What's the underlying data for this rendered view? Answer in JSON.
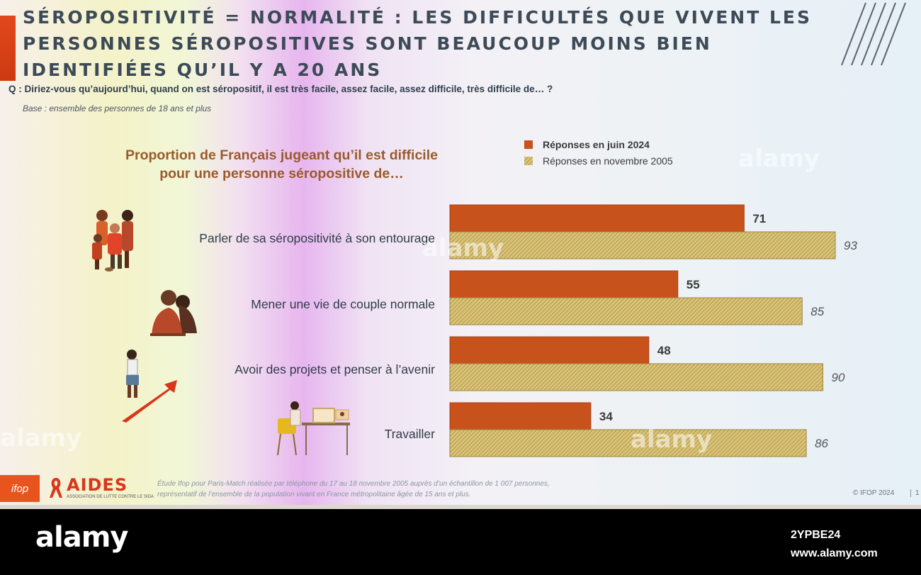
{
  "slide": {
    "title": "SÉROPOSITIVITÉ = NORMALITÉ : LES DIFFICULTÉS QUE VIVENT LES PERSONNES SÉROPOSITIVES SONT BEAUCOUP MOINS BIEN IDENTIFIÉES QU’IL Y A 20 ANS",
    "question": "Q : Diriez-vous qu’aujourd’hui, quand on est séropositif, il est très facile, assez facile, assez difficile, très difficile de… ?",
    "base": "Base : ensemble des personnes de 18 ans et plus",
    "chart_heading_line1": "Proportion de Français jugeant qu’il est difficile",
    "chart_heading_line2": "pour une personne séropositive de…",
    "footer_line1": "Étude Ifop pour Paris-Match réalisée par téléphone du 17 au 18 novembre 2005 auprès d’un échantillon de 1 007 personnes,",
    "footer_line2": "représentatif de l’ensemble de la population vivant en France métropolitaine âgée de 15 ans et plus.",
    "copyright": "© IFOP 2024",
    "page_number": "1",
    "ifop_logo": "ifop",
    "aides_logo": "AIDES",
    "aides_tagline": "ASSOCIATION DE LUTTE CONTRE LE SIDA"
  },
  "watermarks": {
    "text": "alamy",
    "small": "a"
  },
  "bottom_bar": {
    "brand": "alamy",
    "image_id": "2YPBE24",
    "site": "www.alamy.com"
  },
  "colors": {
    "series_2024": "#c8521c",
    "series_2005": "#cdb45a",
    "accent_red": "#e2481c",
    "title_text": "#3d4a57",
    "heading_text": "#9a5a2e"
  },
  "chart_data": {
    "type": "bar",
    "orientation": "horizontal",
    "categories": [
      "Parler de sa séropositivité à son entourage",
      "Mener une vie de couple normale",
      "Avoir des projets et penser à l’avenir",
      "Travailler"
    ],
    "series": [
      {
        "name": "Réponses en juin 2024",
        "values": [
          71,
          55,
          48,
          34
        ],
        "style": "solid"
      },
      {
        "name": "Réponses en novembre 2005",
        "values": [
          93,
          85,
          90,
          86
        ],
        "style": "hatched"
      }
    ],
    "xlim": [
      0,
      100
    ],
    "legend_position": "top-right",
    "grid": false
  }
}
